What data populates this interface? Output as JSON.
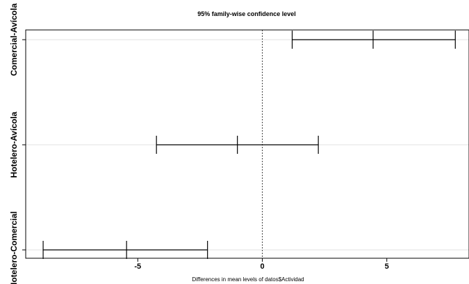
{
  "chart_data": {
    "type": "interval",
    "title": "95% family-wise confidence level",
    "xlabel": "Differences in mean levels of datos$Actividad",
    "ylabel": "",
    "xlim": [
      -9.5,
      8.3
    ],
    "x_ticks": [
      -5,
      0,
      5
    ],
    "x_tick_labels": [
      "-5",
      "0",
      "5"
    ],
    "reference_line": 0,
    "comparisons": [
      {
        "label": "Comercial-Avícola",
        "lwr": 1.2,
        "diff": 4.45,
        "upr": 7.75
      },
      {
        "label": "Hotelero-Avícola",
        "lwr": -4.25,
        "diff": -1.0,
        "upr": 2.25
      },
      {
        "label": "Hotelero-Comercial",
        "lwr": -8.8,
        "diff": -5.45,
        "upr": -2.2
      }
    ],
    "grid": true
  }
}
